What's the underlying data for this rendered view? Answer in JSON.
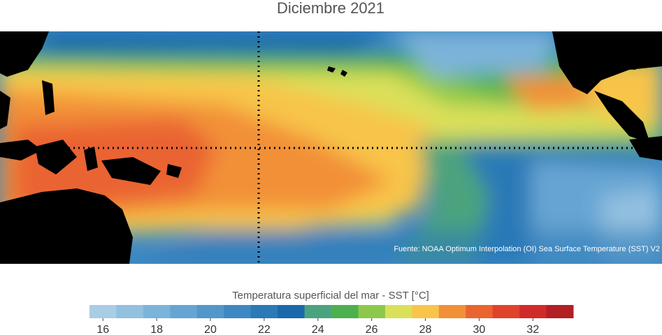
{
  "title": "Diciembre 2021",
  "source": "Fuente: NOAA Optimum Interpolation (OI) Sea Surface Temperature (SST) V2",
  "colorbar": {
    "title": "Temperatura superficial del mar - SST  [°C]",
    "xlim": [
      15.5,
      33.5
    ],
    "xticks": [
      16,
      18,
      20,
      22,
      24,
      26,
      28,
      30,
      32
    ],
    "colors": [
      "#a8cde4",
      "#92c0df",
      "#7cb3da",
      "#66a5d3",
      "#5197cb",
      "#3d88c2",
      "#2b79b7",
      "#1a6aab",
      "#4ba37e",
      "#4cb04f",
      "#8cc84b",
      "#dbe05a",
      "#f8c44a",
      "#f29038",
      "#ea6430",
      "#e0432a",
      "#d12a2a",
      "#b21f24"
    ]
  }
}
